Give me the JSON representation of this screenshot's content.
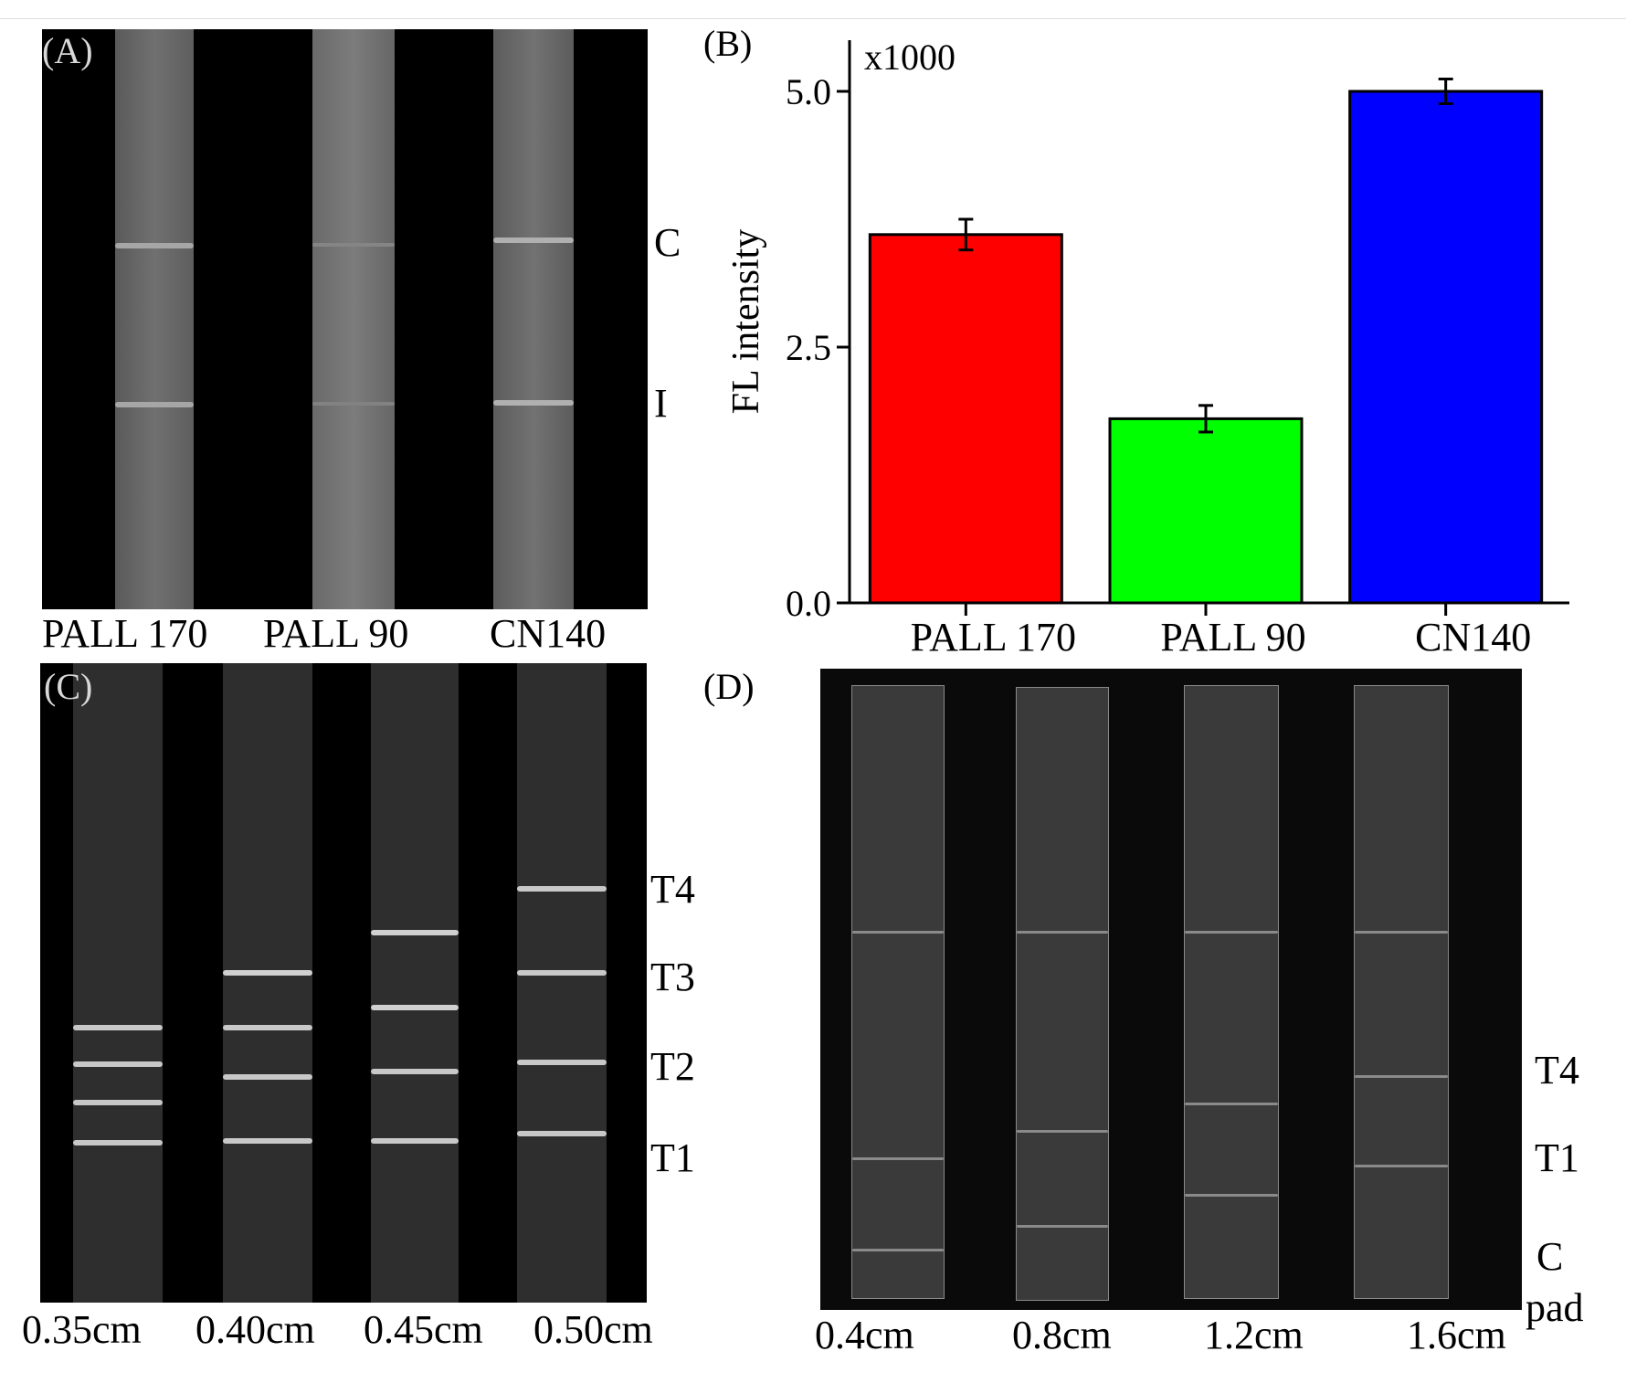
{
  "panelA": {
    "tag": "(A)",
    "line_labels": [
      "C",
      "I"
    ],
    "strip_labels": [
      "PALL 170",
      "PALL 90",
      "CN140"
    ]
  },
  "panelB": {
    "tag": "(B)"
  },
  "chart_data": {
    "type": "bar",
    "categories": [
      "PALL 170",
      "PALL 90",
      "CN140"
    ],
    "values": [
      3.6,
      1.8,
      5.0
    ],
    "errors": [
      0.15,
      0.13,
      0.12
    ],
    "colors": [
      "#ff0000",
      "#00ff00",
      "#0000ff"
    ],
    "ylabel": "FL intensity",
    "y_multiplier": "x1000",
    "yticks": [
      "0.0",
      "2.5",
      "5.0"
    ],
    "ylim": [
      0,
      5.5
    ],
    "grid": false
  },
  "panelC": {
    "tag": "(C)",
    "line_labels": [
      "T4",
      "T3",
      "T2",
      "T1"
    ],
    "strip_labels": [
      "0.35cm",
      "0.40cm",
      "0.45cm",
      "0.50cm"
    ]
  },
  "panelD": {
    "tag": "(D)",
    "line_labels": [
      "T4",
      "T1",
      "C",
      "pad"
    ],
    "strip_labels": [
      "0.4cm",
      "0.8cm",
      "1.2cm",
      "1.6cm"
    ]
  }
}
